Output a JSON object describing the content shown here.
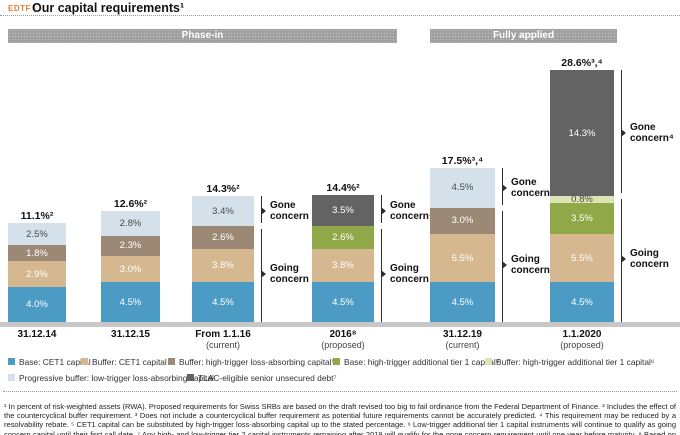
{
  "colors": {
    "accent": "#e87f2f",
    "group_header_bg": "#9b9b9b",
    "baseline": "#c7c7c7",
    "warning": "#ee8a00"
  },
  "header": {
    "tag": "EDTF |",
    "title": "Our capital requirements¹"
  },
  "chart_data": {
    "type": "bar",
    "stacked": true,
    "unit": "percent of risk-weighted assets (RWA)",
    "groups": [
      {
        "label": "Phase-in"
      },
      {
        "label": "Fully applied"
      }
    ],
    "colors": {
      "base_cet1": "#4b9bc5",
      "buffer_cet1": "#d5b88f",
      "buffer_ht_lac": "#9c8975",
      "prog_buffer_lt_lac": "#d4e1ea",
      "base_ht_at1": "#90a847",
      "buffer_ht_at1": "#dce4b3",
      "tlac": "#636363"
    },
    "bars": [
      {
        "group": 0,
        "label": "31.12.14",
        "sublabel": "",
        "total": "11.1%²",
        "segments": [
          {
            "key": "base_cet1",
            "value": 4.0,
            "text": "4.0%"
          },
          {
            "key": "buffer_cet1",
            "value": 2.9,
            "text": "2.9%"
          },
          {
            "key": "buffer_ht_lac",
            "value": 1.8,
            "text": "1.8%"
          },
          {
            "key": "prog_buffer_lt_lac",
            "value": 2.5,
            "text": "2.5%"
          }
        ],
        "brackets": null
      },
      {
        "group": 0,
        "label": "31.12.15",
        "sublabel": "",
        "total": "12.6%²",
        "segments": [
          {
            "key": "base_cet1",
            "value": 4.5,
            "text": "4.5%"
          },
          {
            "key": "buffer_cet1",
            "value": 3.0,
            "text": "3.0%"
          },
          {
            "key": "buffer_ht_lac",
            "value": 2.3,
            "text": "2.3%"
          },
          {
            "key": "prog_buffer_lt_lac",
            "value": 2.8,
            "text": "2.8%"
          }
        ],
        "brackets": null
      },
      {
        "group": 0,
        "label": "From 1.1.16",
        "sublabel": "(current)",
        "total": "14.3%²",
        "segments": [
          {
            "key": "base_cet1",
            "value": 4.5,
            "text": "4.5%"
          },
          {
            "key": "buffer_cet1",
            "value": 3.8,
            "text": "3.8%"
          },
          {
            "key": "buffer_ht_lac",
            "value": 2.6,
            "text": "2.6%"
          },
          {
            "key": "prog_buffer_lt_lac",
            "value": 3.4,
            "text": "3.4%"
          }
        ],
        "brackets": {
          "gone": "Gone concern",
          "going": "Going concern"
        }
      },
      {
        "group": 0,
        "label": "2016⁸",
        "sublabel": "(proposed)",
        "total": "14.4%²",
        "segments": [
          {
            "key": "base_cet1",
            "value": 4.5,
            "text": "4.5%"
          },
          {
            "key": "buffer_cet1",
            "value": 3.8,
            "text": "3.8%"
          },
          {
            "key": "base_ht_at1",
            "value": 2.6,
            "text": "2.6%"
          },
          {
            "key": "tlac",
            "value": 3.5,
            "text": "3.5%"
          }
        ],
        "brackets": {
          "gone": "Gone concern⁴",
          "going": "Going concern"
        }
      },
      {
        "group": 1,
        "label": "31.12.19",
        "sublabel": "(current)",
        "total": "17.5%³,⁴",
        "segments": [
          {
            "key": "base_cet1",
            "value": 4.5,
            "text": "4.5%"
          },
          {
            "key": "buffer_cet1",
            "value": 5.5,
            "text": "5.5%"
          },
          {
            "key": "buffer_ht_lac",
            "value": 3.0,
            "text": "3.0%"
          },
          {
            "key": "prog_buffer_lt_lac",
            "value": 4.5,
            "text": "4.5%"
          }
        ],
        "brackets": {
          "gone": "Gone concern⁴",
          "going": "Going concern"
        }
      },
      {
        "group": 1,
        "label": "1.1.2020",
        "sublabel": "(proposed)",
        "total": "28.6%³,⁴",
        "segments": [
          {
            "key": "base_cet1",
            "value": 4.5,
            "text": "4.5%"
          },
          {
            "key": "buffer_cet1",
            "value": 5.5,
            "text": "5.5%"
          },
          {
            "key": "base_ht_at1",
            "value": 3.5,
            "text": "3.5%"
          },
          {
            "key": "buffer_ht_at1",
            "value": 0.8,
            "text": "0.8%"
          },
          {
            "key": "tlac",
            "value": 14.3,
            "text": "14.3%"
          }
        ],
        "brackets": {
          "gone": "Gone concern⁴",
          "going": "Going concern"
        }
      }
    ]
  },
  "legend": {
    "rows": [
      [
        {
          "key": "base_cet1",
          "label": "Base: CET1 capital"
        },
        {
          "key": "buffer_cet1",
          "label": "Buffer: CET1 capital"
        },
        {
          "key": "buffer_ht_lac",
          "label": "Buffer: high-trigger loss-absorbing capital⁵"
        },
        {
          "key": "base_ht_at1",
          "label": "Base: high-trigger additional tier 1 capital⁶"
        },
        {
          "key": "buffer_ht_at1",
          "label": "Buffer: high-trigger additional tier 1 capital⁶"
        }
      ],
      [
        {
          "key": "prog_buffer_lt_lac",
          "label": "Progressive buffer: low-trigger loss-absorbing capital"
        },
        {
          "key": "tlac",
          "label": "TLAC-eligible senior unsecured debt⁷"
        }
      ]
    ]
  },
  "footnotes": {
    "text": "¹ In percent of risk-weighted assets (RWA). Proposed requirements for Swiss SRBs are based on the draft revised too big to fail ordinance from the Federal Department of Finance.   ² Includes the effect of the countercyclical buffer requirement.   ³ Does not include a countercyclical buffer requirement as potential future requirements cannot be accurately predicted.   ⁴ This requirement may be reduced by a resolvability rebate.   ⁵ CET1 capital can be substituted by high-trigger loss-absorbing capital up to the stated percentage.   ⁶ Low-trigger additional tier 1 capital instruments will continue to qualify as going concern capital until their first call date.   ⁷ Any high- and low-trigger tier 2 capital instruments remaining after 2019 will qualify for the gone concern requirement until one year before maturity.   ⁸ Based on the draft ordinance which proposes an effective date of 1 July 2016.",
    "warning_icon": "▲"
  }
}
